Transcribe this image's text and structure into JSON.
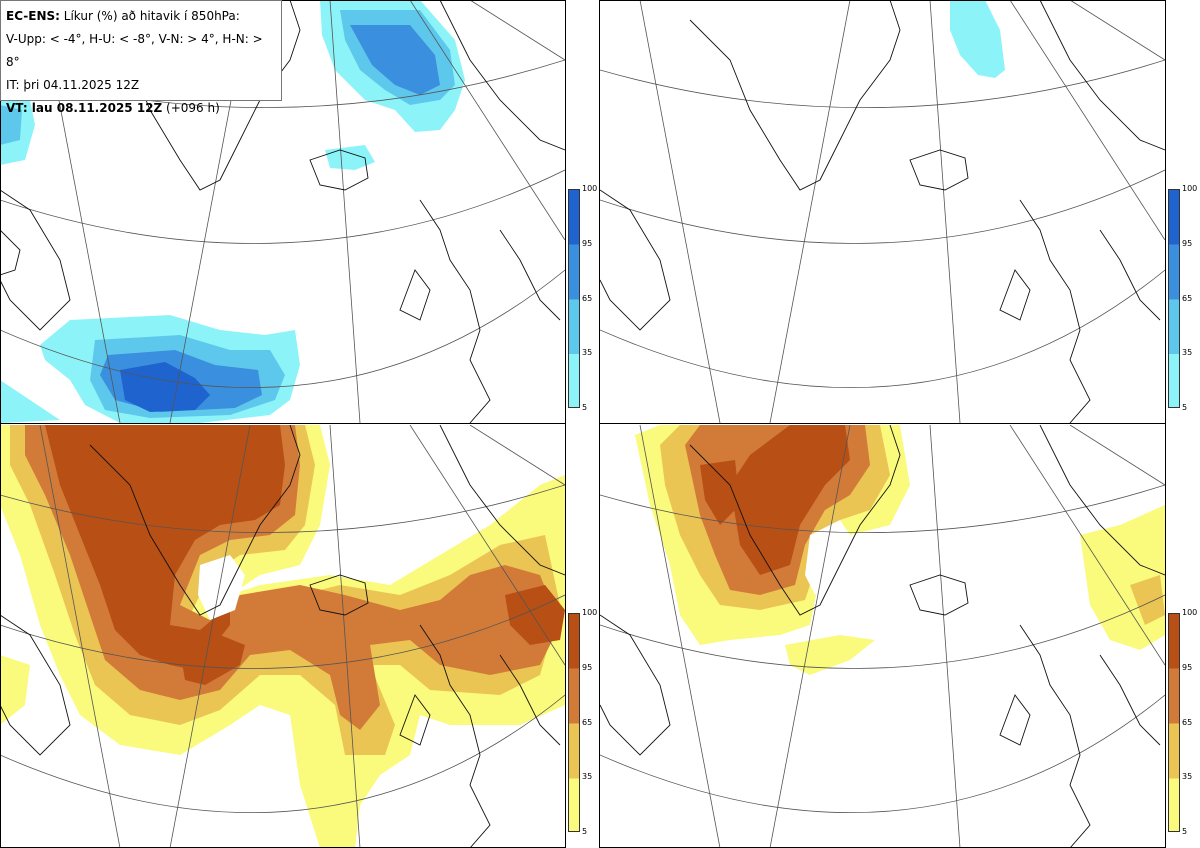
{
  "legend": {
    "title_bold": "EC-ENS:",
    "title_rest": "Líkur (%) að hitavik í 850hPa:",
    "categories": "V-Upp: < -4°, H-U: < -8°, V-N: > 4°, H-N: > 8°",
    "initial_time": "IT: þri 04.11.2025 12Z",
    "valid_bold": "VT: lau 08.11.2025 12Z",
    "valid_lead": "(+096 h)"
  },
  "colorbar": {
    "ticks": [
      "100",
      "95",
      "65",
      "35",
      "5"
    ],
    "cold_colors": [
      "#1f63cf",
      "#3a8fde",
      "#5ec8ec",
      "#8cf4f8"
    ],
    "warm_colors": [
      "#b84f14",
      "#d27b38",
      "#ebc553",
      "#fafa7c"
    ]
  },
  "panels": [
    {
      "name": "cold-below-minus-4",
      "category": "V-Upp"
    },
    {
      "name": "cold-below-minus-8",
      "category": "H-U"
    },
    {
      "name": "warm-above-4",
      "category": "V-N"
    },
    {
      "name": "warm-above-8",
      "category": "H-N"
    }
  ]
}
